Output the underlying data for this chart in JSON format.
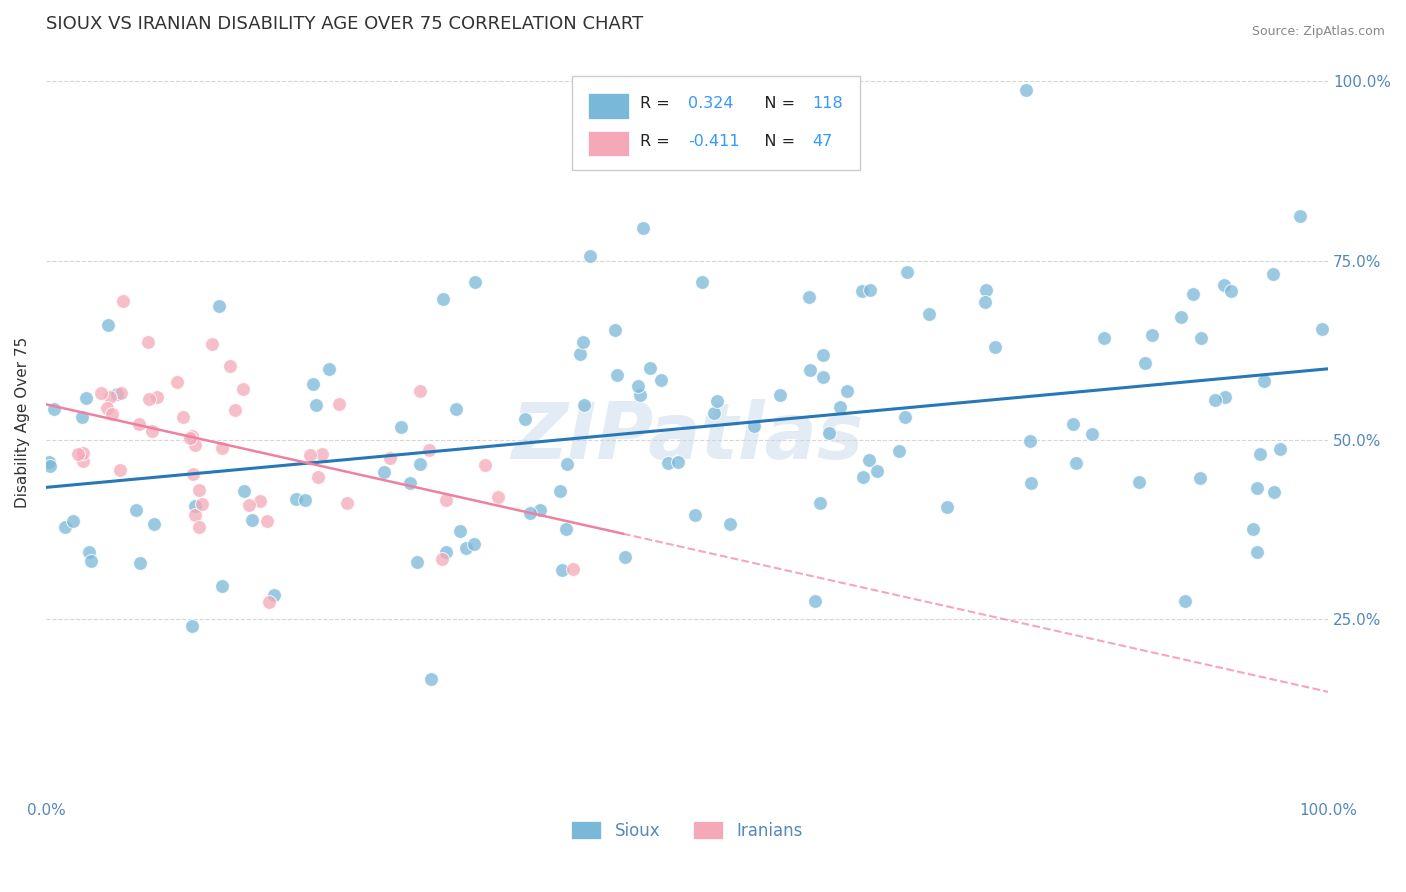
{
  "title": "SIOUX VS IRANIAN DISABILITY AGE OVER 75 CORRELATION CHART",
  "source_text": "Source: ZipAtlas.com",
  "ylabel": "Disability Age Over 75",
  "xmin": 0.0,
  "xmax": 1.0,
  "ymin": 0.0,
  "ymax": 1.05,
  "sioux_R": 0.324,
  "sioux_N": 118,
  "iranian_R": -0.411,
  "iranian_N": 47,
  "sioux_color": "#7ab8d9",
  "iranian_color": "#f4a8b8",
  "sioux_line_color": "#2878b8",
  "iranian_line_color": "#f080a0",
  "background_color": "#ffffff",
  "grid_color": "#cccccc",
  "watermark": "ZIPatlas",
  "watermark_color": "#c8d8ea",
  "legend_r_color": "#3399ff",
  "title_color": "#333333",
  "title_fontsize": 13,
  "axis_label_color": "#333333",
  "tick_label_color": "#5588bb",
  "right_tick_color": "#5588bb"
}
